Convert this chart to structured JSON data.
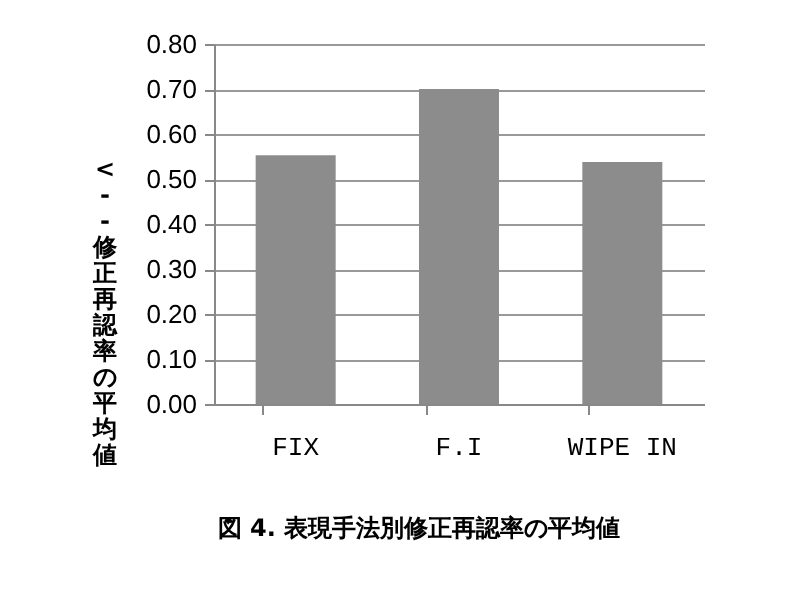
{
  "chart_data": {
    "type": "bar",
    "title": "図 4. 表現手法別修正再認率の平均値",
    "ylabel": "<-- 修正再認率の平均値",
    "categories": [
      "FIX",
      "F.I",
      "WIPE IN"
    ],
    "values": [
      0.553,
      0.7,
      0.538
    ],
    "color": "#8c8c8c",
    "ylim": [
      0,
      0.8
    ],
    "yticks": [
      {
        "value": 0,
        "label": "0.00"
      },
      {
        "value": 0.1,
        "label": "0.10"
      },
      {
        "value": 0.2,
        "label": "0.20"
      },
      {
        "value": 0.3,
        "label": "0.30"
      },
      {
        "value": 0.4,
        "label": "0.40"
      },
      {
        "value": 0.5,
        "label": "0.50"
      },
      {
        "value": 0.6,
        "label": "0.60"
      },
      {
        "value": 0.7,
        "label": "0.70"
      },
      {
        "value": 0.8,
        "label": "0.80"
      }
    ],
    "grid": "y"
  }
}
